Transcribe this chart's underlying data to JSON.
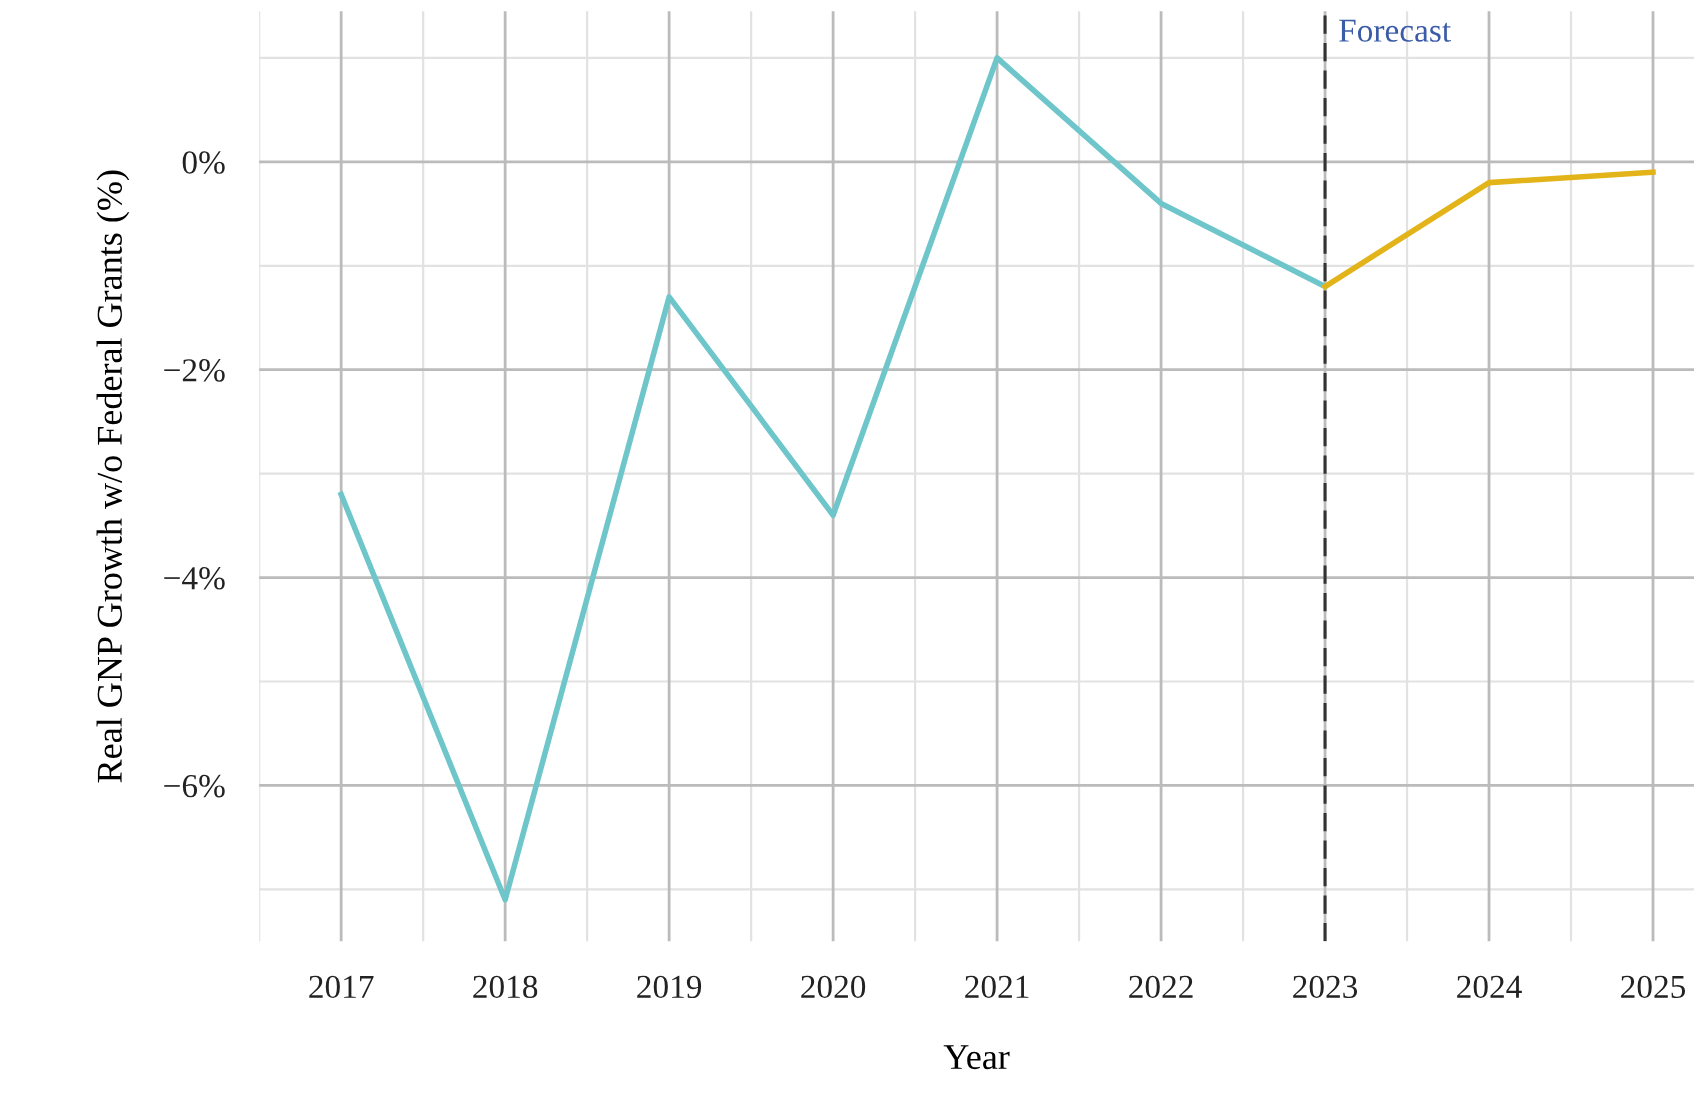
{
  "chart_data": {
    "type": "line",
    "xlabel": "Year",
    "ylabel": "Real GNP Growth w/o Federal Grants (%)",
    "series": [
      {
        "color": "#6ec6ca",
        "x": [
          2017,
          2018,
          2019,
          2020,
          2021,
          2022,
          2023
        ],
        "values": [
          -3.2,
          -7.1,
          -1.3,
          -3.4,
          1.0,
          -0.4,
          -1.2
        ]
      },
      {
        "color": "#e3b419",
        "x": [
          2023,
          2024,
          2025
        ],
        "values": [
          -1.2,
          -0.2,
          -0.1
        ]
      }
    ],
    "xlim": [
      2016.5,
      2025.25
    ],
    "ylim": [
      -7.5,
      1.45
    ],
    "xticks": [
      2017,
      2018,
      2019,
      2020,
      2021,
      2022,
      2023,
      2024,
      2025
    ],
    "yticks": [
      {
        "value": -6,
        "label": "−6%"
      },
      {
        "value": -4,
        "label": "−4%"
      },
      {
        "value": -2,
        "label": "−2%"
      },
      {
        "value": 0,
        "label": "0%"
      }
    ],
    "ref_lines": [
      {
        "axis": "x",
        "value": 2023,
        "label": "Forecast",
        "color": "#333333",
        "line_style": "dashed"
      }
    ],
    "grid": true,
    "legend": false,
    "marker": "none",
    "line_style": "solid"
  }
}
